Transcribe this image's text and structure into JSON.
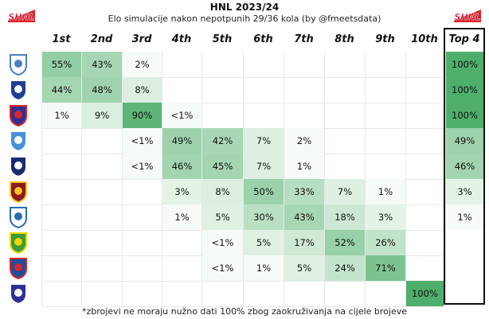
{
  "header": {
    "title": "HNL 2023/24",
    "subtitle": "Elo simulacije nakon nepotpunih 29/36 kola (by @fmeetsdata)",
    "footnote": "*zbrojevi ne moraju nužno dati 100% zbog zaokruživanja na cijele brojeve",
    "logo_text": "SHNL"
  },
  "colors": {
    "heat_max": "#4fae6b",
    "heat_min": "#e8f5ea",
    "border": "#111111"
  },
  "chart_data": {
    "type": "heatmap",
    "columns": [
      "1st",
      "2nd",
      "3rd",
      "4th",
      "5th",
      "6th",
      "7th",
      "8th",
      "9th",
      "10th",
      "Top 4"
    ],
    "rows": [
      {
        "team_icon": "rijeka-crest-icon",
        "values": [
          "55%",
          "43%",
          "2%",
          "",
          "",
          "",
          "",
          "",
          "",
          "",
          "100%"
        ],
        "numeric": [
          55,
          43,
          2,
          null,
          null,
          null,
          null,
          null,
          null,
          null,
          100
        ]
      },
      {
        "team_icon": "dinamo-crest-icon",
        "values": [
          "44%",
          "48%",
          "8%",
          "",
          "",
          "",
          "",
          "",
          "",
          "",
          "100%"
        ],
        "numeric": [
          44,
          48,
          8,
          null,
          null,
          null,
          null,
          null,
          null,
          null,
          100
        ]
      },
      {
        "team_icon": "hajduk-crest-icon",
        "values": [
          "1%",
          "9%",
          "90%",
          "<1%",
          "",
          "",
          "",
          "",
          "",
          "",
          "100%"
        ],
        "numeric": [
          1,
          9,
          90,
          0.5,
          null,
          null,
          null,
          null,
          null,
          null,
          100
        ]
      },
      {
        "team_icon": "osijek-crest-icon",
        "values": [
          "",
          "",
          "<1%",
          "49%",
          "42%",
          "7%",
          "2%",
          "",
          "",
          "",
          "49%"
        ],
        "numeric": [
          null,
          null,
          0.5,
          49,
          42,
          7,
          2,
          null,
          null,
          null,
          49
        ]
      },
      {
        "team_icon": "lokomotiva-crest-icon",
        "values": [
          "",
          "",
          "<1%",
          "46%",
          "45%",
          "7%",
          "1%",
          "",
          "",
          "",
          "46%"
        ],
        "numeric": [
          null,
          null,
          0.5,
          46,
          45,
          7,
          1,
          null,
          null,
          null,
          46
        ]
      },
      {
        "team_icon": "gorica-crest-icon",
        "values": [
          "",
          "",
          "",
          "3%",
          "8%",
          "50%",
          "33%",
          "7%",
          "1%",
          "",
          "3%"
        ],
        "numeric": [
          null,
          null,
          null,
          3,
          8,
          50,
          33,
          7,
          1,
          null,
          3
        ]
      },
      {
        "team_icon": "varazdin-crest-icon",
        "values": [
          "",
          "",
          "",
          "1%",
          "5%",
          "30%",
          "43%",
          "18%",
          "3%",
          "",
          "1%"
        ],
        "numeric": [
          null,
          null,
          null,
          1,
          5,
          30,
          43,
          18,
          3,
          null,
          1
        ]
      },
      {
        "team_icon": "istra-crest-icon",
        "values": [
          "",
          "",
          "",
          "",
          "<1%",
          "5%",
          "17%",
          "52%",
          "26%",
          "",
          ""
        ],
        "numeric": [
          null,
          null,
          null,
          null,
          0.5,
          5,
          17,
          52,
          26,
          null,
          null
        ]
      },
      {
        "team_icon": "slaven-crest-icon",
        "values": [
          "",
          "",
          "",
          "",
          "<1%",
          "1%",
          "5%",
          "24%",
          "71%",
          "",
          ""
        ],
        "numeric": [
          null,
          null,
          null,
          null,
          0.5,
          1,
          5,
          24,
          71,
          null,
          null
        ]
      },
      {
        "team_icon": "rudes-crest-icon",
        "values": [
          "",
          "",
          "",
          "",
          "",
          "",
          "",
          "",
          "",
          "100%",
          ""
        ],
        "numeric": [
          null,
          null,
          null,
          null,
          null,
          null,
          null,
          null,
          null,
          100,
          null
        ]
      }
    ]
  }
}
